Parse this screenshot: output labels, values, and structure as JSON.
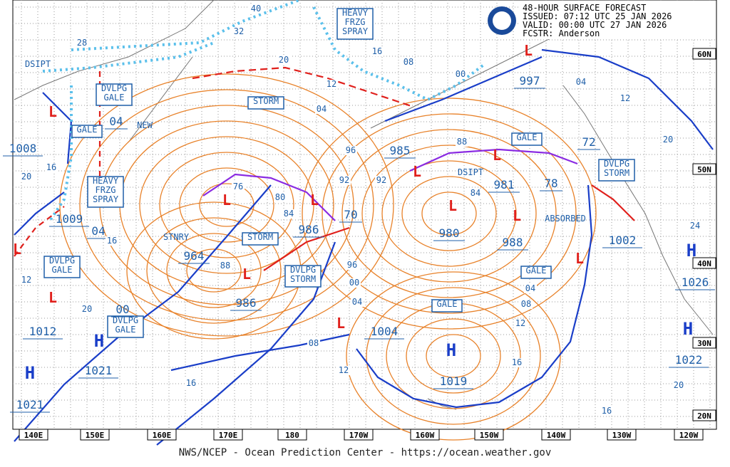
{
  "header": {
    "lines": [
      "48-HOUR SURFACE FORECAST",
      "ISSUED: 07:12 UTC 25 JAN 2026",
      "VALID:  00:00 UTC 27 JAN 2026",
      "FCSTR:  Anderson"
    ]
  },
  "footer": "NWS/NCEP - Ocean Prediction Center - https://ocean.weather.gov",
  "longitudes": [
    "140E",
    "150E",
    "160E",
    "170E",
    "180",
    "170W",
    "160W",
    "150W",
    "140W",
    "130W",
    "120W"
  ],
  "latitudes": [
    "60N",
    "50N",
    "40N",
    "30N",
    "20N"
  ],
  "warnings": [
    [
      "HEAVY",
      "FRZG",
      "SPRAY"
    ],
    [
      "STORM"
    ],
    [
      "DVLPG",
      "GALE"
    ],
    [
      "GALE"
    ],
    [
      "HEAVY",
      "FRZG",
      "SPRAY"
    ],
    [
      "DVLPG",
      "GALE"
    ],
    [
      "DVLPG",
      "GALE"
    ],
    [
      "STORM"
    ],
    [
      "DVLPG",
      "STORM"
    ],
    [
      "GALE"
    ],
    [
      "DVLPG",
      "STORM"
    ],
    [
      "GALE"
    ],
    [
      "GALE"
    ]
  ],
  "notes": [
    "DSIPT",
    "DSIPT",
    "ABSORBED",
    "NEW",
    "STNRY"
  ],
  "center_symbols": [
    "H",
    "H",
    "H",
    "H",
    "H",
    "L",
    "L",
    "L",
    "L",
    "L",
    "L",
    "L",
    "L",
    "L",
    "L",
    "L",
    "L",
    "L"
  ],
  "center_values": [
    "1008",
    "1009",
    "04",
    "964",
    "986",
    "70",
    "986",
    "00",
    "1012",
    "1021",
    "1021",
    "1004",
    "1019",
    "985",
    "981",
    "78",
    "980",
    "988",
    "997",
    "72",
    "1002",
    "1026",
    "1022",
    "04"
  ],
  "isobar_labels": [
    "40",
    "32",
    "28",
    "20",
    "16",
    "08",
    "00",
    "12",
    "04",
    "96",
    "92",
    "92",
    "88",
    "84",
    "76",
    "80",
    "84",
    "88",
    "96",
    "00",
    "04",
    "08",
    "12",
    "16",
    "20",
    "16",
    "12",
    "20",
    "16",
    "04",
    "08",
    "12",
    "16",
    "20",
    "16",
    "24",
    "20",
    "12",
    "04"
  ]
}
